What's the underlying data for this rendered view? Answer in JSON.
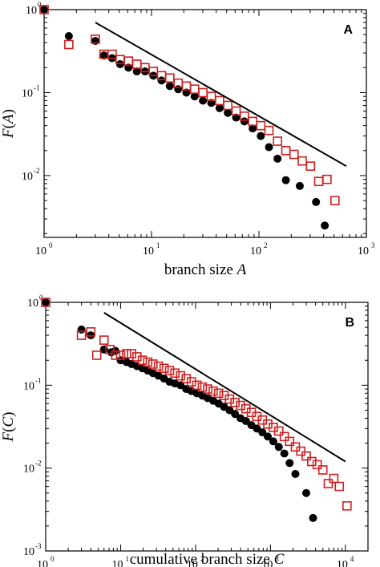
{
  "chart_data": [
    {
      "type": "scatter",
      "panel_label": "A",
      "ylabel_fn": "F",
      "ylabel_arg": "A",
      "xlabel_text": "branch size ",
      "xlabel_var": "A",
      "xscale": "log",
      "yscale": "log",
      "xlim": [
        1,
        1000
      ],
      "ylim": [
        0.0018,
        1.0
      ],
      "x_tick_exponents": [
        0,
        1,
        2,
        3
      ],
      "y_tick_exponents": [
        0,
        -1,
        -2
      ],
      "grid": false,
      "legend": "none",
      "series": [
        {
          "marker": "filled-circle",
          "color": "#000000",
          "x": [
            1,
            1.7,
            3,
            3.6,
            4.3,
            5.1,
            6.1,
            7.3,
            8.7,
            10.4,
            12.4,
            14.8,
            17.7,
            21.1,
            25.2,
            30.1,
            36,
            43,
            51.3,
            61.3,
            73.2,
            87.4,
            104,
            124,
            149,
            178,
            240,
            340,
            410
          ],
          "y": [
            1.0,
            0.48,
            0.42,
            0.28,
            0.26,
            0.22,
            0.2,
            0.18,
            0.18,
            0.16,
            0.14,
            0.12,
            0.11,
            0.1,
            0.09,
            0.08,
            0.075,
            0.065,
            0.057,
            0.05,
            0.045,
            0.037,
            0.03,
            0.022,
            0.016,
            0.0088,
            0.0075,
            0.0048,
            0.0025
          ]
        },
        {
          "marker": "open-square",
          "color": "#cc1f1f",
          "x": [
            1,
            1.7,
            3,
            3.6,
            4.3,
            5.1,
            6.1,
            7.3,
            8.7,
            10.4,
            12.4,
            14.8,
            17.7,
            21.1,
            25.2,
            30.1,
            36,
            43,
            51.3,
            61.3,
            73.2,
            87.4,
            104,
            124,
            149,
            178,
            212,
            253,
            302,
            360,
            430,
            510
          ],
          "y": [
            1.0,
            0.38,
            0.44,
            0.29,
            0.29,
            0.25,
            0.24,
            0.22,
            0.2,
            0.18,
            0.16,
            0.15,
            0.13,
            0.12,
            0.11,
            0.1,
            0.09,
            0.08,
            0.07,
            0.06,
            0.052,
            0.045,
            0.04,
            0.035,
            0.026,
            0.02,
            0.018,
            0.015,
            0.013,
            0.0085,
            0.009,
            0.005
          ]
        },
        {
          "marker": "line",
          "color": "#000000",
          "x": [
            3,
            650
          ],
          "y": [
            0.7,
            0.013
          ]
        }
      ]
    },
    {
      "type": "scatter",
      "panel_label": "B",
      "ylabel_fn": "F",
      "ylabel_arg": "C",
      "xlabel_text": "cumulative branch size ",
      "xlabel_var": "C",
      "xscale": "log",
      "yscale": "log",
      "xlim": [
        1,
        20000
      ],
      "ylim": [
        0.001,
        1.0
      ],
      "x_tick_exponents": [
        0,
        1,
        2,
        3,
        4
      ],
      "y_tick_exponents": [
        0,
        -1,
        -2,
        -3
      ],
      "grid": false,
      "legend": "none",
      "series": [
        {
          "marker": "filled-circle",
          "color": "#000000",
          "x": [
            1,
            3,
            4,
            6,
            7.5,
            8.5,
            10,
            12,
            14,
            16.5,
            19.5,
            23,
            27,
            32,
            38,
            45,
            53,
            63,
            75,
            88,
            104,
            123,
            145,
            172,
            203,
            240,
            284,
            336,
            398,
            470,
            556,
            658,
            780,
            920,
            1090,
            1290,
            1530,
            1800,
            2150,
            3000,
            3700
          ],
          "y": [
            1.0,
            0.47,
            0.4,
            0.27,
            0.25,
            0.26,
            0.2,
            0.19,
            0.18,
            0.17,
            0.16,
            0.15,
            0.14,
            0.13,
            0.12,
            0.11,
            0.105,
            0.1,
            0.09,
            0.085,
            0.08,
            0.075,
            0.07,
            0.065,
            0.06,
            0.055,
            0.05,
            0.045,
            0.04,
            0.037,
            0.033,
            0.03,
            0.027,
            0.024,
            0.021,
            0.018,
            0.015,
            0.0115,
            0.0085,
            0.005,
            0.0025
          ]
        },
        {
          "marker": "open-square",
          "color": "#cc1f1f",
          "x": [
            1,
            3,
            4,
            4.8,
            6,
            7.2,
            8.6,
            10,
            12,
            14,
            16.5,
            19.5,
            23,
            27,
            32,
            38,
            45,
            53,
            63,
            75,
            88,
            104,
            123,
            145,
            172,
            203,
            240,
            284,
            336,
            398,
            470,
            556,
            658,
            780,
            920,
            1090,
            1290,
            1530,
            1800,
            2150,
            2540,
            3000,
            3550,
            4200,
            5000,
            5900,
            7000,
            8300,
            10500
          ],
          "y": [
            1.0,
            0.4,
            0.44,
            0.23,
            0.35,
            0.27,
            0.23,
            0.23,
            0.24,
            0.24,
            0.22,
            0.2,
            0.19,
            0.18,
            0.17,
            0.16,
            0.15,
            0.14,
            0.13,
            0.12,
            0.11,
            0.1,
            0.095,
            0.09,
            0.085,
            0.08,
            0.075,
            0.068,
            0.062,
            0.057,
            0.052,
            0.047,
            0.042,
            0.038,
            0.034,
            0.031,
            0.028,
            0.024,
            0.021,
            0.018,
            0.016,
            0.014,
            0.012,
            0.011,
            0.0095,
            0.0065,
            0.0075,
            0.006,
            0.0035
          ]
        },
        {
          "marker": "line",
          "color": "#000000",
          "x": [
            6,
            10000
          ],
          "y": [
            0.75,
            0.012
          ]
        }
      ]
    }
  ]
}
